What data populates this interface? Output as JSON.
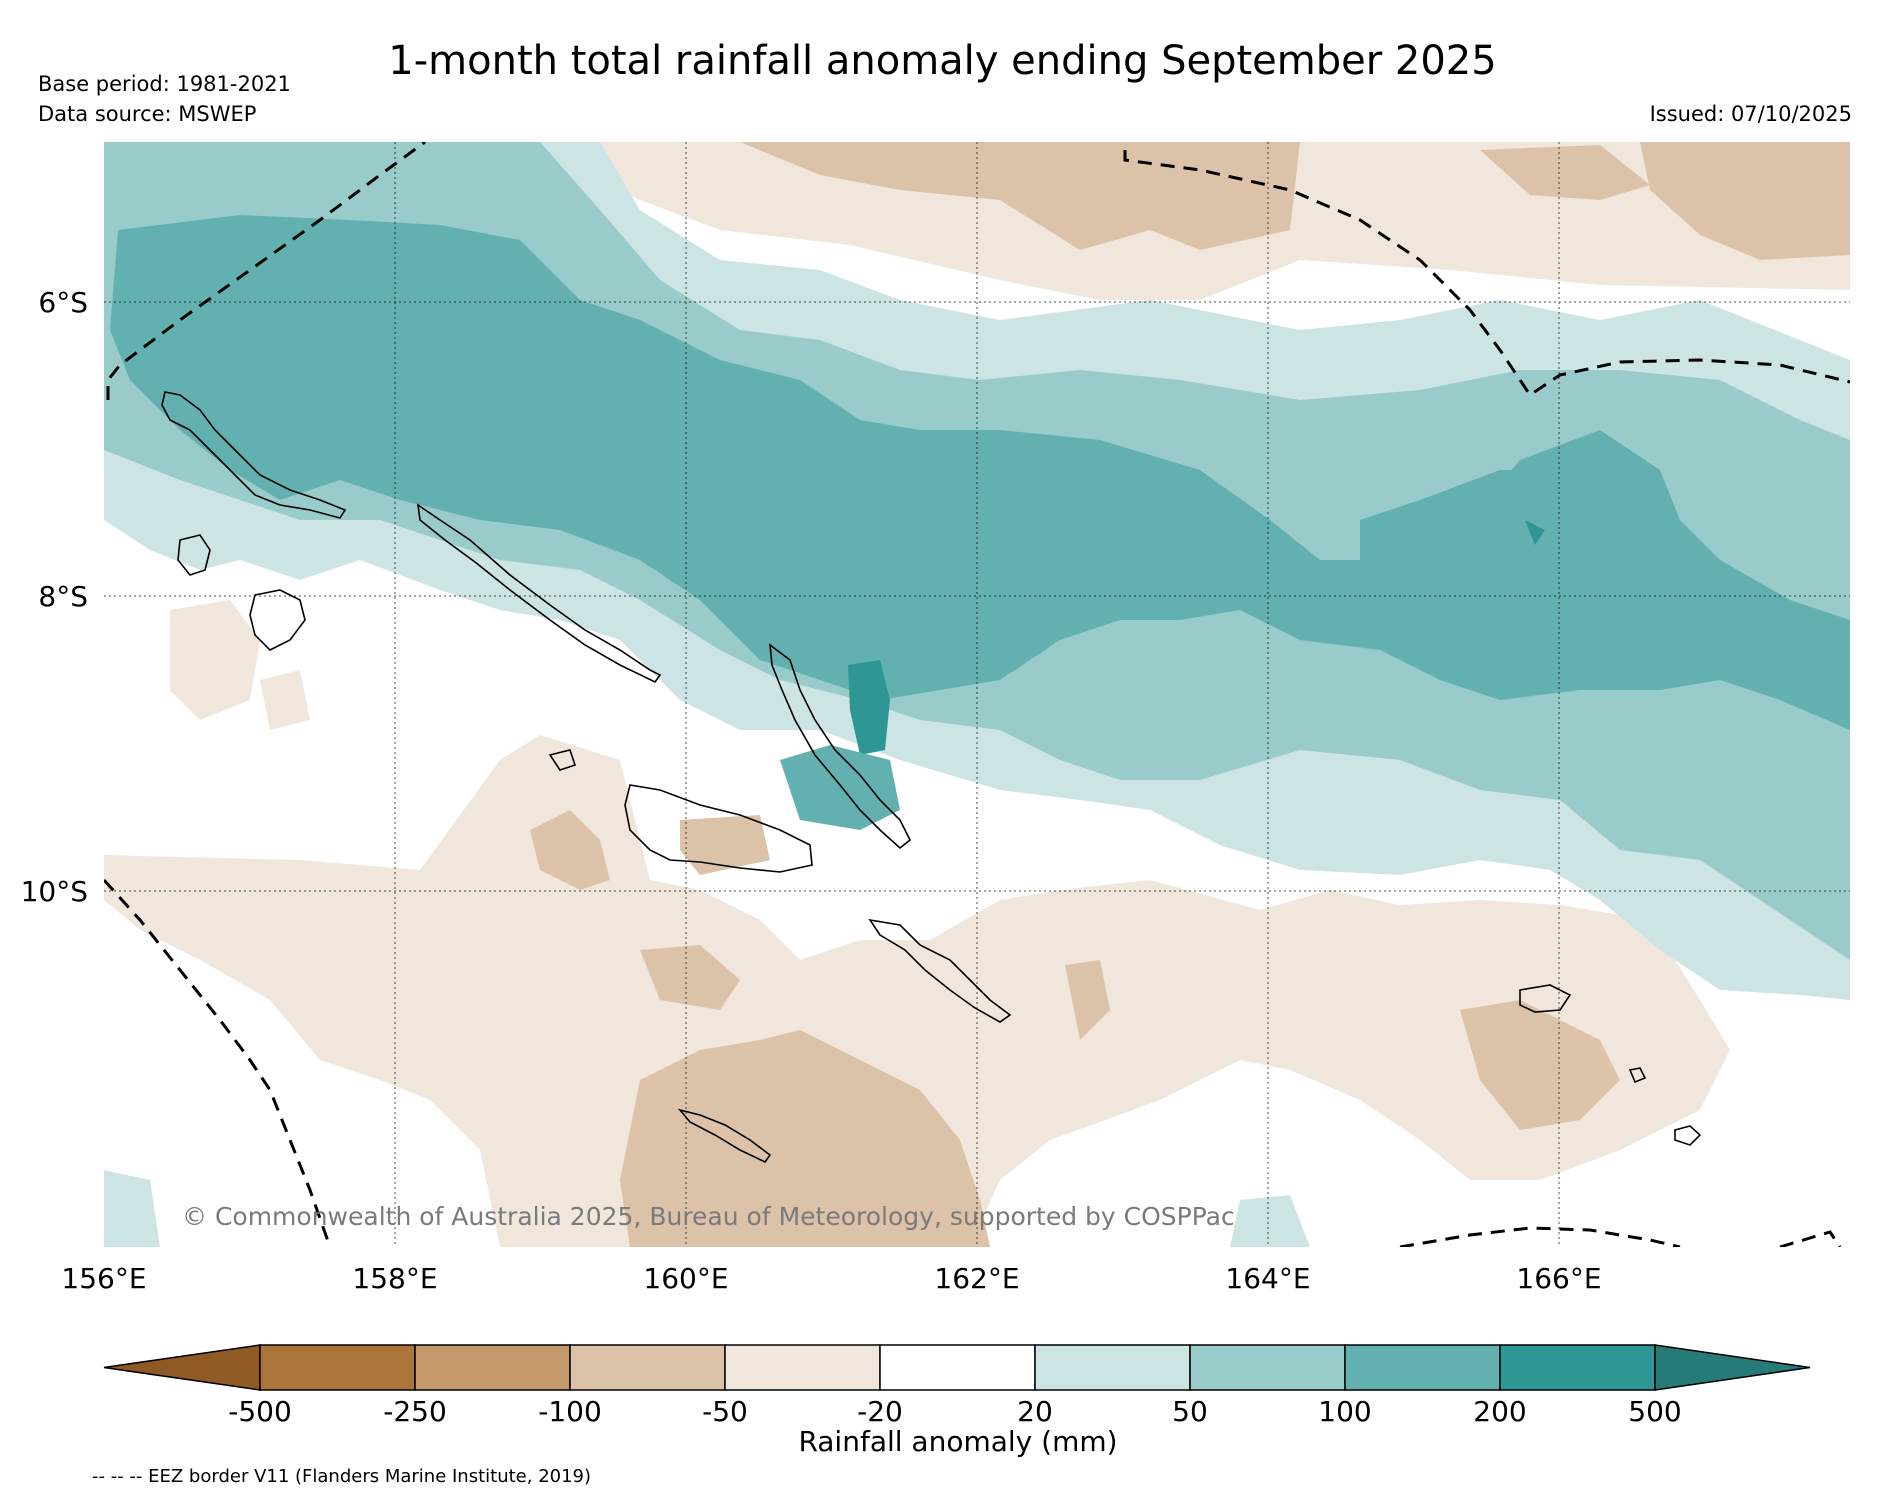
{
  "title": "1-month total rainfall anomaly ending September 2025",
  "base_period": "Base period: 1981-2021",
  "data_source": "Data source: MSWEP",
  "issued": "Issued: 07/10/2025",
  "copyright": "© Commonwealth of Australia 2025, Bureau of Meteorology, supported by COSPPac",
  "lat_labels": [
    "6°S",
    "8°S",
    "10°S"
  ],
  "lon_labels": [
    "156°E",
    "158°E",
    "160°E",
    "162°E",
    "164°E",
    "166°E"
  ],
  "colorbar": {
    "label": "Rainfall anomaly (mm)",
    "ticks": [
      "-500",
      "-250",
      "-100",
      "-50",
      "-20",
      "20",
      "50",
      "100",
      "200",
      "500"
    ],
    "colors": [
      "#8f5a23",
      "#ab743b",
      "#c49a6c",
      "#dbc2a8",
      "#f1e6dc",
      "#ffffff",
      "#cce5e4",
      "#9acbcb",
      "#63b0b0",
      "#2e9794",
      "#267a77"
    ]
  },
  "footnote": "-- -- -- EEZ border V11 (Flanders Marine Institute, 2019)"
}
